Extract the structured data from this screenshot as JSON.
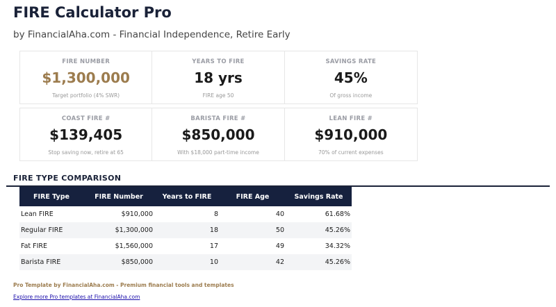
{
  "header": {
    "title": "FIRE Calculator Pro",
    "subtitle": "by FinancialAha.com - Financial Independence, Retire Early"
  },
  "cards": [
    {
      "label": "FIRE NUMBER",
      "value": "$1,300,000",
      "note": "Target portfolio (4% SWR)"
    },
    {
      "label": "YEARS TO FIRE",
      "value": "18 yrs",
      "note": "FIRE age 50"
    },
    {
      "label": "SAVINGS RATE",
      "value": "45%",
      "note": "Of gross income"
    },
    {
      "label": "COAST FIRE #",
      "value": "$139,405",
      "note": "Stop saving now, retire at 65"
    },
    {
      "label": "BARISTA FIRE #",
      "value": "$850,000",
      "note": "With $18,000 part-time income"
    },
    {
      "label": "LEAN FIRE #",
      "value": "$910,000",
      "note": "70% of current expenses"
    }
  ],
  "accent_color": "#9c7c4e",
  "comparison": {
    "heading": "FIRE TYPE COMPARISON",
    "columns": [
      "FIRE Type",
      "FIRE Number",
      "Years to FIRE",
      "FIRE Age",
      "Savings Rate"
    ],
    "rows": [
      [
        "Lean FIRE",
        "$910,000",
        "8",
        "40",
        "61.68%"
      ],
      [
        "Regular FIRE",
        "$1,300,000",
        "18",
        "50",
        "45.26%"
      ],
      [
        "Fat FIRE",
        "$1,560,000",
        "17",
        "49",
        "34.32%"
      ],
      [
        "Barista FIRE",
        "$850,000",
        "10",
        "42",
        "45.26%"
      ]
    ]
  },
  "footer": {
    "pro": "Pro Template by FinancialAha.com - Premium financial tools and templates",
    "link": "Explore more Pro templates at FinancialAha.com"
  }
}
